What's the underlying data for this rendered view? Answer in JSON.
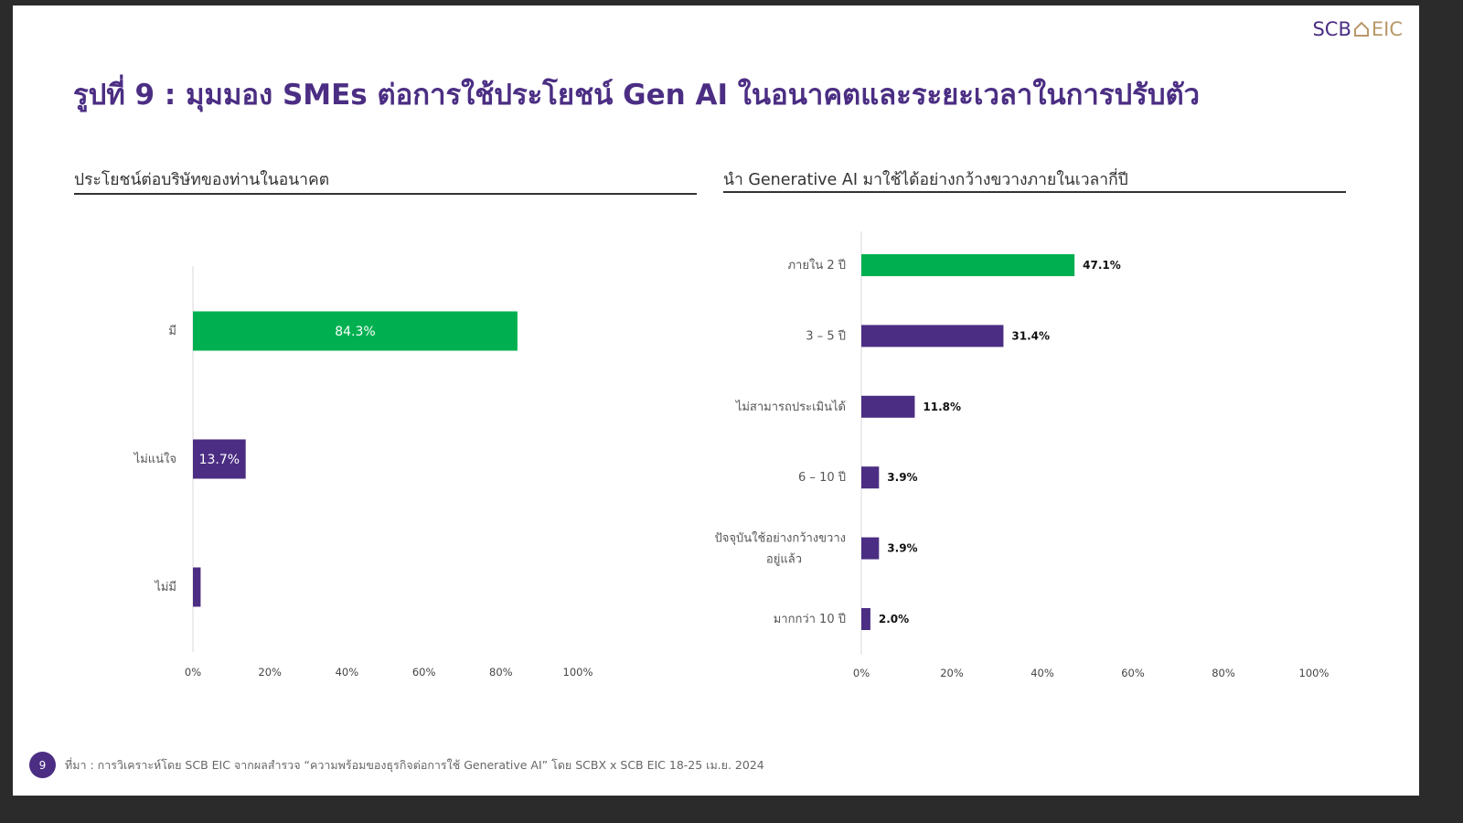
{
  "logo": {
    "left": "SCB",
    "right": "EIC",
    "icon": "house-icon"
  },
  "title": "รูปที่ 9 : มุมมอง SMEs ต่อการใช้ประโยชน์ Gen AI ในอนาคตและระยะเวลาในการปรับตัว",
  "colors": {
    "green": "#00b050",
    "purple": "#4b2e83"
  },
  "chart_data": [
    {
      "type": "bar",
      "orientation": "horizontal",
      "title": "ประโยชน์ต่อบริษัทของท่านในอนาคต",
      "categories": [
        "มี",
        "ไม่แน่ใจ",
        "ไม่มี"
      ],
      "values": [
        84.3,
        13.7,
        2.0
      ],
      "data_labels": [
        "84.3%",
        "13.7%",
        ""
      ],
      "bar_colors": [
        "#00b050",
        "#4b2e83",
        "#4b2e83"
      ],
      "xlim": [
        0,
        100
      ],
      "x_ticks": [
        "0%",
        "20%",
        "40%",
        "60%",
        "80%",
        "100%"
      ],
      "grid": false
    },
    {
      "type": "bar",
      "orientation": "horizontal",
      "title": "นำ Generative AI มาใช้ได้อย่างกว้างขวางภายในเวลากี่ปี",
      "categories": [
        "ภายใน 2 ปี",
        "3 – 5 ปี",
        "ไม่สามารถประเมินได้",
        "6 – 10 ปี",
        "ปัจจุบันใช้อย่างกว้างขวาง อยู่แล้ว",
        "มากกว่า 10 ปี"
      ],
      "values": [
        47.1,
        31.4,
        11.8,
        3.9,
        3.9,
        2.0
      ],
      "data_labels": [
        "47.1%",
        "31.4%",
        "11.8%",
        "3.9%",
        "3.9%",
        "2.0%"
      ],
      "bar_colors": [
        "#00b050",
        "#4b2e83",
        "#4b2e83",
        "#4b2e83",
        "#4b2e83",
        "#4b2e83"
      ],
      "xlim": [
        0,
        100
      ],
      "x_ticks": [
        "0%",
        "20%",
        "40%",
        "60%",
        "80%",
        "100%"
      ],
      "grid": false
    }
  ],
  "footer": {
    "page": "9",
    "source": "ที่มา : การวิเคราะห์โดย SCB EIC จากผลสำรวจ “ความพร้อมของธุรกิจต่อการใช้ Generative AI” โดย SCBX x SCB EIC 18-25 เม.ย. 2024"
  }
}
